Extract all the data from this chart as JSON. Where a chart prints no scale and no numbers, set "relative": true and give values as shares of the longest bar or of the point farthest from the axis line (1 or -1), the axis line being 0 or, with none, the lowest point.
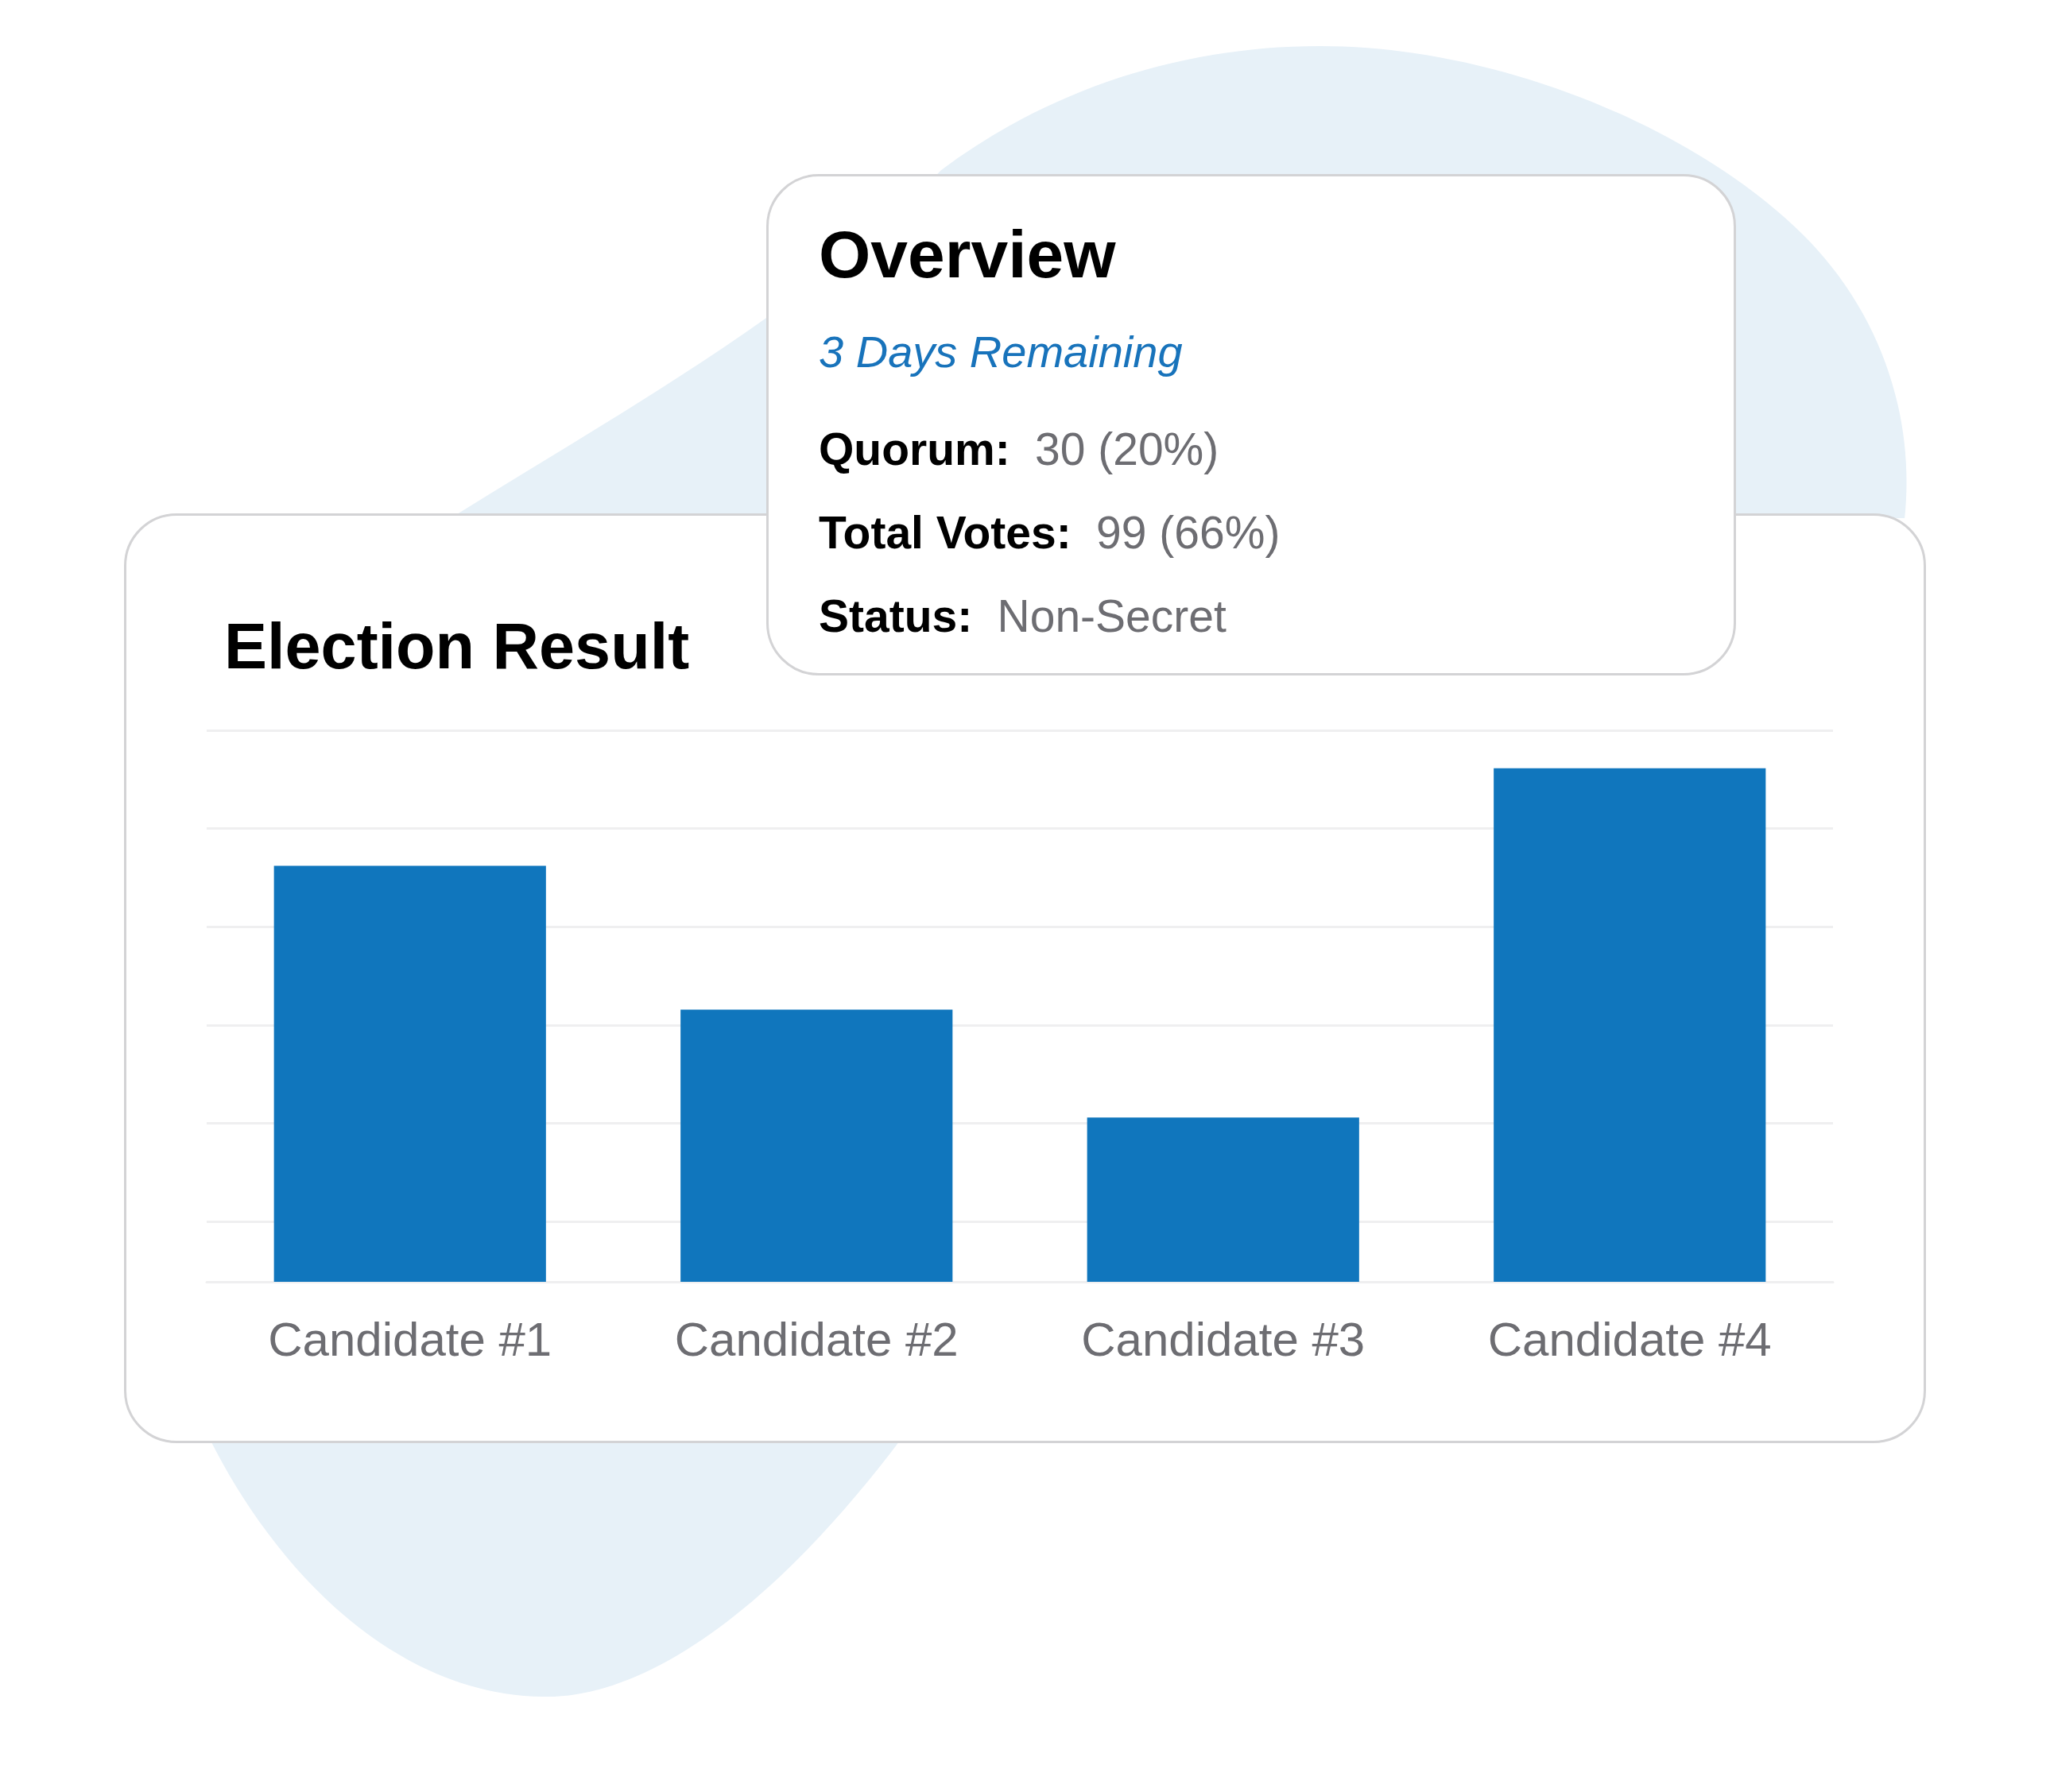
{
  "chart_data": [
    {
      "type": "bar",
      "title": "Election Result",
      "categories": [
        "Candidate #1",
        "Candidate #2",
        "Candidate #3",
        "Candidate #4"
      ],
      "values": [
        0.81,
        0.53,
        0.32,
        1
      ],
      "color": "#1076bd",
      "relative": true,
      "grid": true
    },
    {
      "type": "other",
      "title": "Overview",
      "subtitle": "3 Days Remaining",
      "annotations": [
        "Quorum:",
        "30 (20%)",
        "Total Votes:",
        "99 (66%)",
        "Status:",
        "Non-Secret"
      ]
    }
  ]
}
